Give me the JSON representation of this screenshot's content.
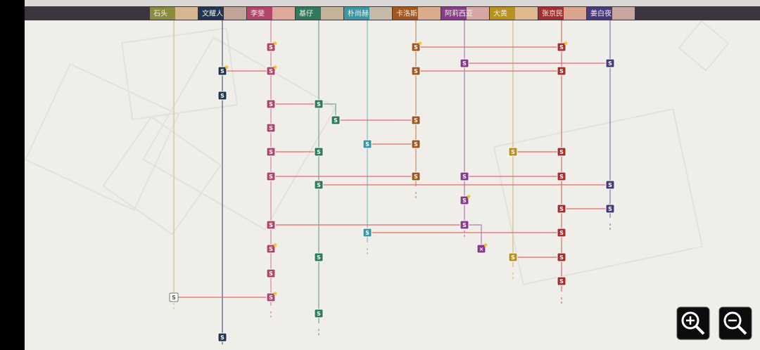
{
  "header": {
    "characters": [
      {
        "name": "石头"
      },
      {
        "name": "文耀人"
      },
      {
        "name": "李斐"
      },
      {
        "name": "基仔"
      },
      {
        "name": "朴尚赫"
      },
      {
        "name": "卡洛斯"
      },
      {
        "name": "阿莉西亚"
      },
      {
        "name": "大黄"
      },
      {
        "name": "张京民"
      },
      {
        "name": "姜白夜"
      }
    ]
  },
  "nodes": [
    {
      "label": "S"
    },
    {
      "label": "S"
    },
    {
      "label": "S"
    },
    {
      "label": "S"
    },
    {
      "label": "S"
    },
    {
      "label": "S"
    },
    {
      "label": "S"
    },
    {
      "label": "S"
    },
    {
      "label": "S"
    },
    {
      "label": "S"
    },
    {
      "label": "S"
    },
    {
      "label": "S"
    },
    {
      "label": "S"
    },
    {
      "label": "S"
    },
    {
      "label": "S"
    },
    {
      "label": "S"
    },
    {
      "label": "S"
    },
    {
      "label": "S"
    },
    {
      "label": "S"
    },
    {
      "label": "S"
    },
    {
      "label": "S"
    },
    {
      "label": "S"
    },
    {
      "label": "S"
    },
    {
      "label": "S"
    },
    {
      "label": "S"
    },
    {
      "label": "S"
    },
    {
      "label": "S"
    },
    {
      "label": "S"
    },
    {
      "label": "S"
    },
    {
      "label": "S"
    },
    {
      "label": "S"
    },
    {
      "label": "S"
    },
    {
      "label": "S"
    },
    {
      "label": "S"
    },
    {
      "label": "S"
    },
    {
      "label": "S"
    },
    {
      "label": "S"
    },
    {
      "label": "S"
    },
    {
      "label": "S"
    },
    {
      "label": "S"
    },
    {
      "label": "S"
    },
    {
      "label": "S"
    },
    {
      "label": "S"
    },
    {
      "label": "S"
    },
    {
      "label": "×"
    }
  ]
}
